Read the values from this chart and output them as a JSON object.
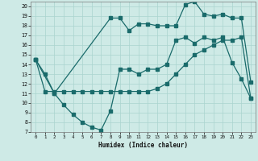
{
  "xlabel": "Humidex (Indice chaleur)",
  "bg_color": "#ceeae6",
  "line_color": "#1a6b6b",
  "grid_color": "#aad4ce",
  "line1_x": [
    0,
    1,
    2,
    3,
    4,
    5,
    6,
    7,
    8,
    9,
    10,
    11,
    12,
    13,
    14,
    15,
    16,
    17,
    18,
    19,
    20,
    21,
    22,
    23
  ],
  "line1_y": [
    14.5,
    13.0,
    11.0,
    9.8,
    8.8,
    8.0,
    7.5,
    7.2,
    9.2,
    13.5,
    13.5,
    13.0,
    13.5,
    13.5,
    14.0,
    16.5,
    16.8,
    16.2,
    16.8,
    16.5,
    16.8,
    14.2,
    12.5,
    10.5
  ],
  "line2_x": [
    0,
    1,
    2,
    3,
    4,
    5,
    6,
    7,
    8,
    9,
    10,
    11,
    12,
    13,
    14,
    15,
    16,
    17,
    18,
    19,
    20,
    21,
    22,
    23
  ],
  "line2_y": [
    14.5,
    11.2,
    11.2,
    11.2,
    11.2,
    11.2,
    11.2,
    11.2,
    11.2,
    11.2,
    11.2,
    11.2,
    11.2,
    11.5,
    12.0,
    13.0,
    14.0,
    15.0,
    15.5,
    16.0,
    16.5,
    16.5,
    16.8,
    10.5
  ],
  "line3_x": [
    0,
    2,
    8,
    9,
    10,
    11,
    12,
    13,
    14,
    15,
    16,
    17,
    18,
    19,
    20,
    21,
    22,
    23
  ],
  "line3_y": [
    14.5,
    11.0,
    18.8,
    18.8,
    17.5,
    18.2,
    18.2,
    18.0,
    18.0,
    18.0,
    20.2,
    20.5,
    19.2,
    19.0,
    19.2,
    18.8,
    18.8,
    12.2
  ],
  "xlim": [
    -0.5,
    23.5
  ],
  "ylim": [
    7,
    20.5
  ],
  "xticks": [
    0,
    1,
    2,
    3,
    4,
    5,
    6,
    7,
    8,
    9,
    10,
    11,
    12,
    13,
    14,
    15,
    16,
    17,
    18,
    19,
    20,
    21,
    22,
    23
  ],
  "yticks": [
    7,
    8,
    9,
    10,
    11,
    12,
    13,
    14,
    15,
    16,
    17,
    18,
    19,
    20
  ]
}
